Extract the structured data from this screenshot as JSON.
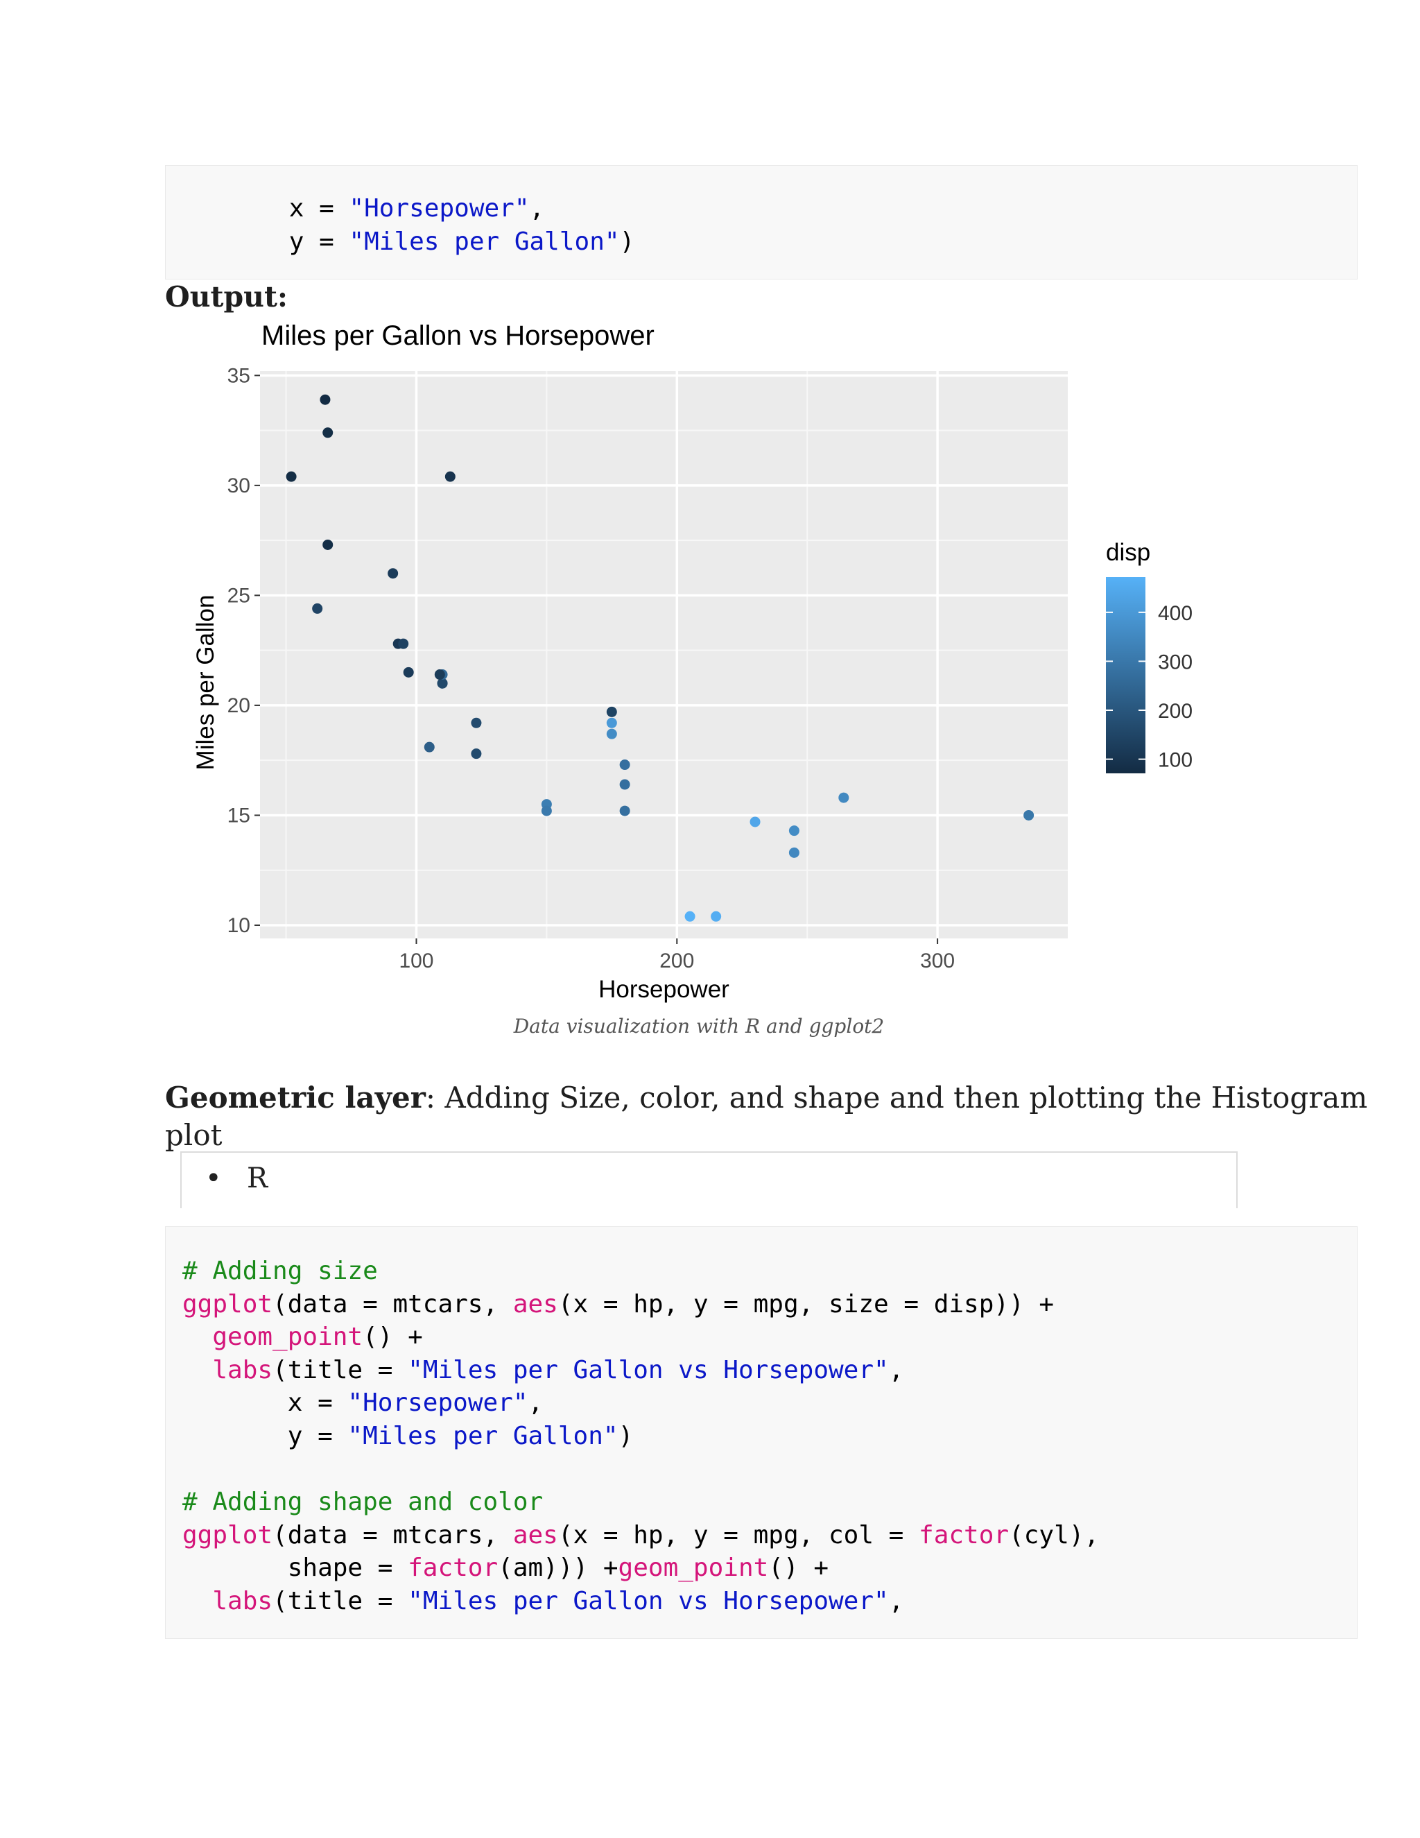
{
  "code_top": {
    "lines": [
      [
        {
          "t": "       x = ",
          "c": ""
        },
        {
          "t": "\"Horsepower\"",
          "c": "str"
        },
        {
          "t": ",",
          "c": ""
        }
      ],
      [
        {
          "t": "       y = ",
          "c": ""
        },
        {
          "t": "\"Miles per Gallon\"",
          "c": "str"
        },
        {
          "t": ")",
          "c": ""
        }
      ]
    ]
  },
  "output_label": "Output:",
  "chart_data": {
    "type": "scatter",
    "title": "Miles per Gallon vs Horsepower",
    "xlabel": "Horsepower",
    "ylabel": "Miles per Gallon",
    "xlim": [
      40,
      350
    ],
    "ylim": [
      9.4,
      35.2
    ],
    "xticks": [
      100,
      200,
      300
    ],
    "yticks": [
      10,
      15,
      20,
      25,
      30,
      35
    ],
    "grid": true,
    "legend": {
      "title": "disp",
      "placement": "right",
      "type": "colorbar",
      "ticks": [
        400,
        300,
        200,
        100
      ],
      "range": [
        71.1,
        472
      ],
      "color_low": "#132B43",
      "color_high": "#56B1F7"
    },
    "points": [
      {
        "x": 110,
        "y": 21.0,
        "disp": 160
      },
      {
        "x": 110,
        "y": 21.0,
        "disp": 160
      },
      {
        "x": 93,
        "y": 22.8,
        "disp": 108
      },
      {
        "x": 110,
        "y": 21.4,
        "disp": 258
      },
      {
        "x": 175,
        "y": 18.7,
        "disp": 360
      },
      {
        "x": 105,
        "y": 18.1,
        "disp": 225
      },
      {
        "x": 245,
        "y": 14.3,
        "disp": 360
      },
      {
        "x": 62,
        "y": 24.4,
        "disp": 146.7
      },
      {
        "x": 95,
        "y": 22.8,
        "disp": 140.8
      },
      {
        "x": 123,
        "y": 19.2,
        "disp": 167.6
      },
      {
        "x": 123,
        "y": 17.8,
        "disp": 167.6
      },
      {
        "x": 180,
        "y": 16.4,
        "disp": 275.8
      },
      {
        "x": 180,
        "y": 17.3,
        "disp": 275.8
      },
      {
        "x": 180,
        "y": 15.2,
        "disp": 275.8
      },
      {
        "x": 205,
        "y": 10.4,
        "disp": 472
      },
      {
        "x": 215,
        "y": 10.4,
        "disp": 460
      },
      {
        "x": 230,
        "y": 14.7,
        "disp": 440
      },
      {
        "x": 66,
        "y": 32.4,
        "disp": 78.7
      },
      {
        "x": 52,
        "y": 30.4,
        "disp": 75.7
      },
      {
        "x": 65,
        "y": 33.9,
        "disp": 71.1
      },
      {
        "x": 97,
        "y": 21.5,
        "disp": 120.1
      },
      {
        "x": 150,
        "y": 15.5,
        "disp": 318
      },
      {
        "x": 150,
        "y": 15.2,
        "disp": 304
      },
      {
        "x": 245,
        "y": 13.3,
        "disp": 350
      },
      {
        "x": 175,
        "y": 19.2,
        "disp": 400
      },
      {
        "x": 66,
        "y": 27.3,
        "disp": 79
      },
      {
        "x": 91,
        "y": 26.0,
        "disp": 120.3
      },
      {
        "x": 113,
        "y": 30.4,
        "disp": 95.1
      },
      {
        "x": 264,
        "y": 15.8,
        "disp": 351
      },
      {
        "x": 175,
        "y": 19.7,
        "disp": 145
      },
      {
        "x": 335,
        "y": 15.0,
        "disp": 301
      },
      {
        "x": 109,
        "y": 21.4,
        "disp": 121
      }
    ]
  },
  "caption": "Data visualization with R and ggplot2",
  "section": {
    "bold": "Geometric layer",
    "rest": ": Adding Size, color, and shape and then plotting the Histogram",
    "line2": "plot"
  },
  "lang_tab": {
    "bullet": "•",
    "label": "R"
  },
  "code_bottom": {
    "lines": [
      [
        {
          "t": "# Adding size",
          "c": "cmt"
        }
      ],
      [
        {
          "t": "ggplot",
          "c": "fn"
        },
        {
          "t": "(data = mtcars, ",
          "c": ""
        },
        {
          "t": "aes",
          "c": "fn"
        },
        {
          "t": "(x = hp, y = mpg, size = disp)) +",
          "c": ""
        }
      ],
      [
        {
          "t": "  ",
          "c": ""
        },
        {
          "t": "geom_point",
          "c": "fn"
        },
        {
          "t": "() +",
          "c": ""
        }
      ],
      [
        {
          "t": "  ",
          "c": ""
        },
        {
          "t": "labs",
          "c": "fn"
        },
        {
          "t": "(title = ",
          "c": ""
        },
        {
          "t": "\"Miles per Gallon vs Horsepower\"",
          "c": "str"
        },
        {
          "t": ",",
          "c": ""
        }
      ],
      [
        {
          "t": "       x = ",
          "c": ""
        },
        {
          "t": "\"Horsepower\"",
          "c": "str"
        },
        {
          "t": ",",
          "c": ""
        }
      ],
      [
        {
          "t": "       y = ",
          "c": ""
        },
        {
          "t": "\"Miles per Gallon\"",
          "c": "str"
        },
        {
          "t": ")",
          "c": ""
        }
      ],
      [],
      [
        {
          "t": "# Adding shape and color",
          "c": "cmt"
        }
      ],
      [
        {
          "t": "ggplot",
          "c": "fn"
        },
        {
          "t": "(data = mtcars, ",
          "c": ""
        },
        {
          "t": "aes",
          "c": "fn"
        },
        {
          "t": "(x = hp, y = mpg, col = ",
          "c": ""
        },
        {
          "t": "factor",
          "c": "fn"
        },
        {
          "t": "(cyl),",
          "c": ""
        }
      ],
      [
        {
          "t": "       shape = ",
          "c": ""
        },
        {
          "t": "factor",
          "c": "fn"
        },
        {
          "t": "(am))) +",
          "c": ""
        },
        {
          "t": "geom_point",
          "c": "fn"
        },
        {
          "t": "() +",
          "c": ""
        }
      ],
      [
        {
          "t": "  ",
          "c": ""
        },
        {
          "t": "labs",
          "c": "fn"
        },
        {
          "t": "(title = ",
          "c": ""
        },
        {
          "t": "\"Miles per Gallon vs Horsepower\"",
          "c": "str"
        },
        {
          "t": ",",
          "c": ""
        }
      ]
    ]
  }
}
